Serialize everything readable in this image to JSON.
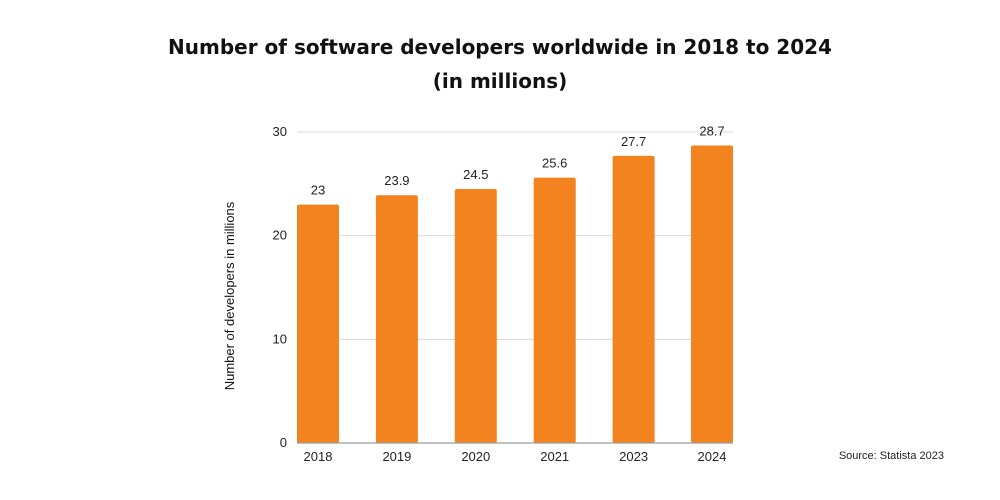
{
  "chart_data": {
    "type": "bar",
    "title": "Number of software developers worldwide in 2018 to 2024",
    "subtitle": "(in millions)",
    "xlabel": "",
    "ylabel": "Number of developers in millions",
    "categories": [
      "2018",
      "2019",
      "2020",
      "2021",
      "2023",
      "2024"
    ],
    "values": [
      23,
      23.9,
      24.5,
      25.6,
      27.7,
      28.7
    ],
    "data_labels": [
      "23",
      "23.9",
      "24.5",
      "25.6",
      "27.7",
      "28.7"
    ],
    "ylim": [
      0,
      30
    ],
    "yticks": [
      0,
      10,
      20,
      30
    ],
    "grid": true,
    "legend": "none",
    "bar_color": "#F3831F",
    "source": "Source: Statista 2023"
  }
}
